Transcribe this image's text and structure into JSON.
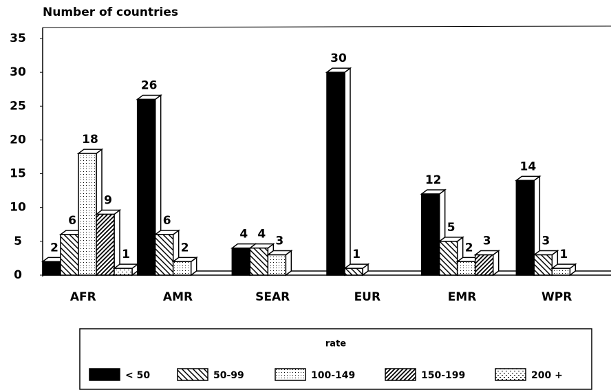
{
  "chart_data": {
    "type": "bar3d",
    "title": "Number of countries",
    "categories": [
      "AFR",
      "AMR",
      "SEAR",
      "EUR",
      "EMR",
      "WPR"
    ],
    "series": [
      {
        "name": "< 50",
        "color": "#000000",
        "pattern": "solid",
        "values": [
          2,
          26,
          4,
          30,
          12,
          14
        ]
      },
      {
        "name": "50-99",
        "color": "#000000",
        "pattern": "backslash",
        "values": [
          6,
          6,
          4,
          1,
          5,
          3
        ]
      },
      {
        "name": "100-149",
        "color": "#000000",
        "pattern": "dots",
        "values": [
          18,
          2,
          3,
          null,
          2,
          1
        ]
      },
      {
        "name": "150-199",
        "color": "#000000",
        "pattern": "slash",
        "values": [
          9,
          null,
          null,
          null,
          3,
          null
        ]
      },
      {
        "name": "200 +",
        "color": "#000000",
        "pattern": "dashgrid",
        "values": [
          1,
          null,
          null,
          null,
          null,
          null
        ]
      }
    ],
    "legend_title": "rate",
    "legend": "bottom",
    "ylim": [
      0,
      35
    ],
    "yticks": [
      0,
      5,
      10,
      15,
      20,
      25,
      30,
      35
    ]
  }
}
